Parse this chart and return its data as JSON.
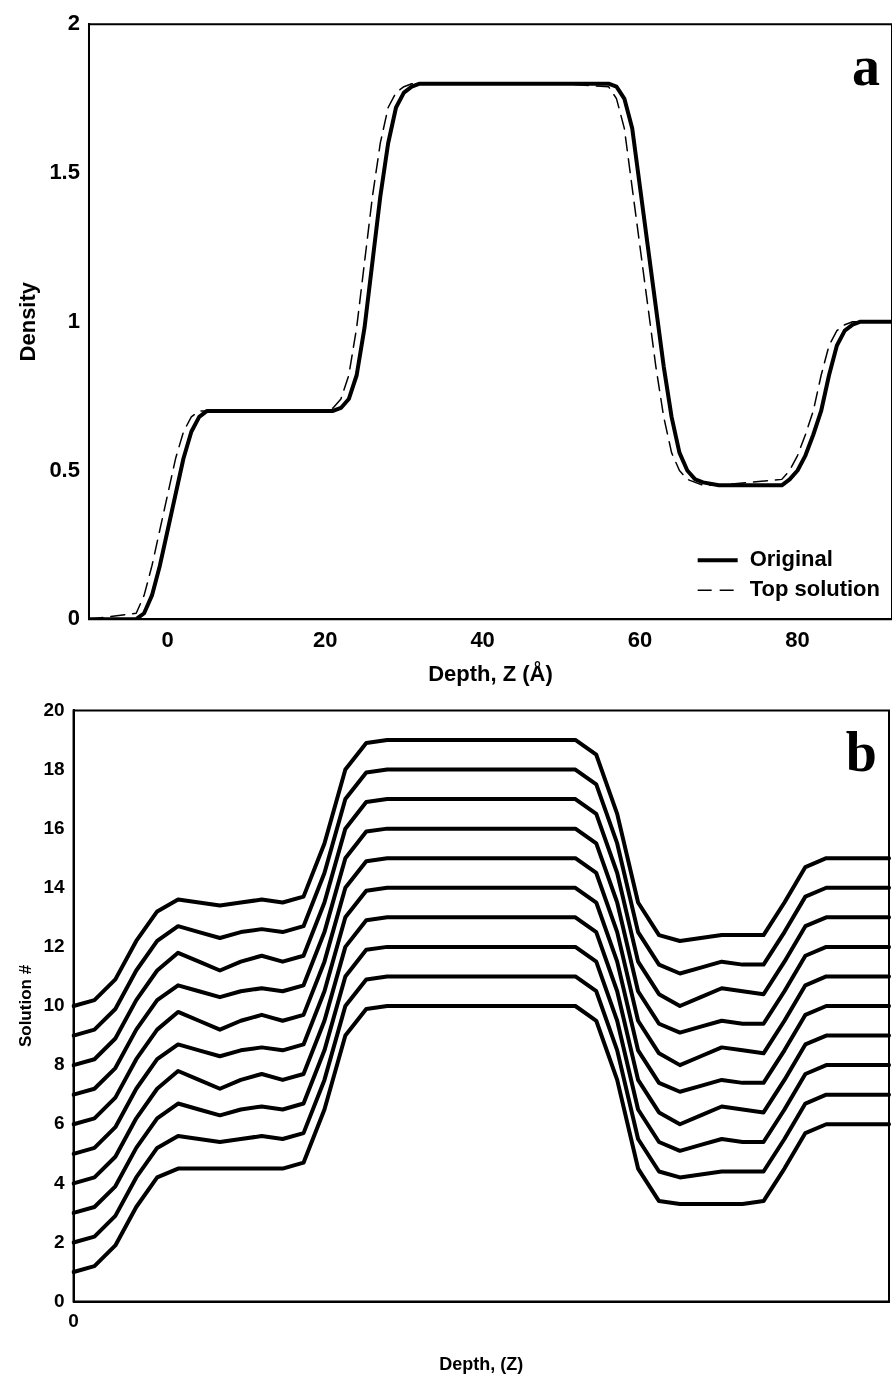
{
  "chart_data": [
    {
      "type": "line",
      "xlabel": "Depth, Z (Å)",
      "ylabel": "Density",
      "annotations": [
        "a"
      ],
      "x": [
        -10,
        -4,
        -3,
        -2,
        -1,
        0,
        1,
        2,
        3,
        4,
        5,
        10,
        20,
        21,
        22,
        23,
        24,
        25,
        26,
        27,
        28,
        29,
        30,
        31,
        32,
        40,
        50,
        56,
        57,
        58,
        59,
        60,
        61,
        62,
        63,
        64,
        65,
        66,
        67,
        68,
        70,
        78,
        79,
        80,
        81,
        82,
        83,
        84,
        85,
        86,
        87,
        88,
        92
      ],
      "series": [
        {
          "name": "Original",
          "color": "#000000",
          "line_style": "solid",
          "values": [
            0,
            0,
            0.02,
            0.08,
            0.18,
            0.3,
            0.42,
            0.54,
            0.63,
            0.68,
            0.7,
            0.7,
            0.7,
            0.7,
            0.71,
            0.74,
            0.82,
            0.98,
            1.2,
            1.42,
            1.6,
            1.72,
            1.77,
            1.79,
            1.8,
            1.8,
            1.8,
            1.8,
            1.79,
            1.75,
            1.65,
            1.45,
            1.25,
            1.05,
            0.85,
            0.68,
            0.56,
            0.5,
            0.47,
            0.46,
            0.45,
            0.45,
            0.47,
            0.5,
            0.55,
            0.62,
            0.7,
            0.82,
            0.92,
            0.97,
            0.99,
            1,
            1
          ]
        },
        {
          "name": "Top solution",
          "color": "#000000",
          "line_style": "dashed",
          "values": [
            0,
            0.02,
            0.08,
            0.18,
            0.3,
            0.42,
            0.54,
            0.63,
            0.68,
            0.7,
            0.7,
            0.7,
            0.7,
            0.71,
            0.74,
            0.82,
            0.98,
            1.2,
            1.42,
            1.6,
            1.72,
            1.77,
            1.79,
            1.8,
            1.8,
            1.8,
            1.8,
            1.79,
            1.75,
            1.65,
            1.45,
            1.25,
            1.05,
            0.85,
            0.68,
            0.56,
            0.5,
            0.47,
            0.46,
            0.45,
            0.45,
            0.47,
            0.5,
            0.55,
            0.62,
            0.7,
            0.82,
            0.92,
            0.97,
            0.99,
            1,
            1,
            1
          ]
        }
      ],
      "xlim": [
        -10,
        92
      ],
      "xticks": [
        0,
        20,
        40,
        60,
        80
      ],
      "ylim": [
        0,
        2
      ],
      "yticks": [
        0,
        0.5,
        1,
        1.5,
        2
      ],
      "grid": false,
      "legend": "bottom right",
      "marker": "none"
    },
    {
      "type": "line",
      "xlabel": "Depth, (Z)",
      "ylabel": "Solution #",
      "annotations": [
        "b"
      ],
      "categories": [
        "0",
        null,
        null,
        null,
        null,
        null,
        null,
        null,
        null,
        null,
        null,
        null,
        null,
        null,
        null,
        null,
        null,
        null,
        null,
        null,
        null,
        null,
        null,
        null,
        null,
        null,
        null,
        null,
        null,
        null,
        null,
        null,
        null,
        null,
        null,
        null,
        null,
        null,
        null,
        null
      ],
      "series": [
        {
          "color": "#000000",
          "values": [
            1,
            1.2,
            1.9,
            3.2,
            4.2,
            4.5,
            4.5,
            4.5,
            4.5,
            4.5,
            4.5,
            4.7,
            6.5,
            9,
            9.9,
            10,
            10,
            10,
            10,
            10,
            10,
            10,
            10,
            10,
            10,
            9.5,
            7.5,
            4.5,
            3.4,
            3.3,
            3.3,
            3.3,
            3.3,
            3.4,
            4.5,
            5.7,
            6,
            6,
            6,
            6
          ]
        },
        {
          "color": "#000000",
          "values": [
            2,
            2.2,
            2.9,
            4.2,
            5.2,
            5.6,
            5.5,
            5.4,
            5.5,
            5.6,
            5.5,
            5.7,
            7.5,
            10,
            10.9,
            11,
            11,
            11,
            11,
            11,
            11,
            11,
            11,
            11,
            11,
            10.5,
            8.5,
            5.5,
            4.4,
            4.2,
            4.3,
            4.4,
            4.4,
            4.4,
            5.5,
            6.7,
            7,
            7,
            7,
            7
          ]
        },
        {
          "color": "#000000",
          "values": [
            3,
            3.2,
            3.9,
            5.2,
            6.2,
            6.7,
            6.5,
            6.3,
            6.5,
            6.6,
            6.5,
            6.7,
            8.5,
            11,
            11.9,
            12,
            12,
            12,
            12,
            12,
            12,
            12,
            12,
            12,
            12,
            11.5,
            9.5,
            6.5,
            5.4,
            5.1,
            5.3,
            5.5,
            5.4,
            5.4,
            6.5,
            7.7,
            8,
            8,
            8,
            8
          ]
        },
        {
          "color": "#000000",
          "values": [
            4,
            4.2,
            4.9,
            6.2,
            7.2,
            7.8,
            7.5,
            7.2,
            7.5,
            7.7,
            7.5,
            7.7,
            9.5,
            12,
            12.9,
            13,
            13,
            13,
            13,
            13,
            13,
            13,
            13,
            13,
            13,
            12.5,
            10.5,
            7.5,
            6.4,
            6,
            6.3,
            6.6,
            6.5,
            6.4,
            7.5,
            8.7,
            9,
            9,
            9,
            9
          ]
        },
        {
          "color": "#000000",
          "values": [
            5,
            5.2,
            5.9,
            7.2,
            8.2,
            8.7,
            8.5,
            8.3,
            8.5,
            8.6,
            8.5,
            8.7,
            10.5,
            13,
            13.9,
            14,
            14,
            14,
            14,
            14,
            14,
            14,
            14,
            14,
            14,
            13.5,
            11.5,
            8.5,
            7.4,
            7.1,
            7.3,
            7.5,
            7.4,
            7.4,
            8.5,
            9.7,
            10,
            10,
            10,
            10
          ]
        },
        {
          "color": "#000000",
          "values": [
            6,
            6.2,
            6.9,
            8.2,
            9.2,
            9.8,
            9.5,
            9.2,
            9.5,
            9.7,
            9.5,
            9.7,
            11.5,
            14,
            14.9,
            15,
            15,
            15,
            15,
            15,
            15,
            15,
            15,
            15,
            15,
            14.5,
            12.5,
            9.5,
            8.4,
            8,
            8.3,
            8.6,
            8.5,
            8.4,
            9.5,
            10.7,
            11,
            11,
            11,
            11
          ]
        },
        {
          "color": "#000000",
          "values": [
            7,
            7.2,
            7.9,
            9.2,
            10.2,
            10.7,
            10.5,
            10.3,
            10.5,
            10.6,
            10.5,
            10.7,
            12.5,
            15,
            15.9,
            16,
            16,
            16,
            16,
            16,
            16,
            16,
            16,
            16,
            16,
            15.5,
            13.5,
            10.5,
            9.4,
            9.1,
            9.3,
            9.5,
            9.4,
            9.4,
            10.5,
            11.7,
            12,
            12,
            12,
            12
          ]
        },
        {
          "color": "#000000",
          "values": [
            8,
            8.2,
            8.9,
            10.2,
            11.2,
            11.8,
            11.5,
            11.2,
            11.5,
            11.7,
            11.5,
            11.7,
            13.5,
            16,
            16.9,
            17,
            17,
            17,
            17,
            17,
            17,
            17,
            17,
            17,
            17,
            16.5,
            14.5,
            11.5,
            10.4,
            10,
            10.3,
            10.6,
            10.5,
            10.4,
            11.5,
            12.7,
            13,
            13,
            13,
            13
          ]
        },
        {
          "color": "#000000",
          "values": [
            9,
            9.2,
            9.9,
            11.2,
            12.2,
            12.7,
            12.5,
            12.3,
            12.5,
            12.6,
            12.5,
            12.7,
            14.5,
            17,
            17.9,
            18,
            18,
            18,
            18,
            18,
            18,
            18,
            18,
            18,
            18,
            17.5,
            15.5,
            12.5,
            11.4,
            11.1,
            11.3,
            11.5,
            11.4,
            11.4,
            12.5,
            13.7,
            14,
            14,
            14,
            14
          ]
        },
        {
          "color": "#000000",
          "values": [
            10,
            10.2,
            10.9,
            12.2,
            13.2,
            13.6,
            13.5,
            13.4,
            13.5,
            13.6,
            13.5,
            13.7,
            15.5,
            18,
            18.9,
            19,
            19,
            19,
            19,
            19,
            19,
            19,
            19,
            19,
            19,
            18.5,
            16.5,
            13.5,
            12.4,
            12.2,
            12.3,
            12.4,
            12.4,
            12.4,
            13.5,
            14.7,
            15,
            15,
            15,
            15
          ]
        }
      ],
      "ylim": [
        0,
        20
      ],
      "yticks": [
        0,
        2,
        4,
        6,
        8,
        10,
        12,
        14,
        16,
        18,
        20
      ],
      "grid": false,
      "marker": "none"
    }
  ]
}
